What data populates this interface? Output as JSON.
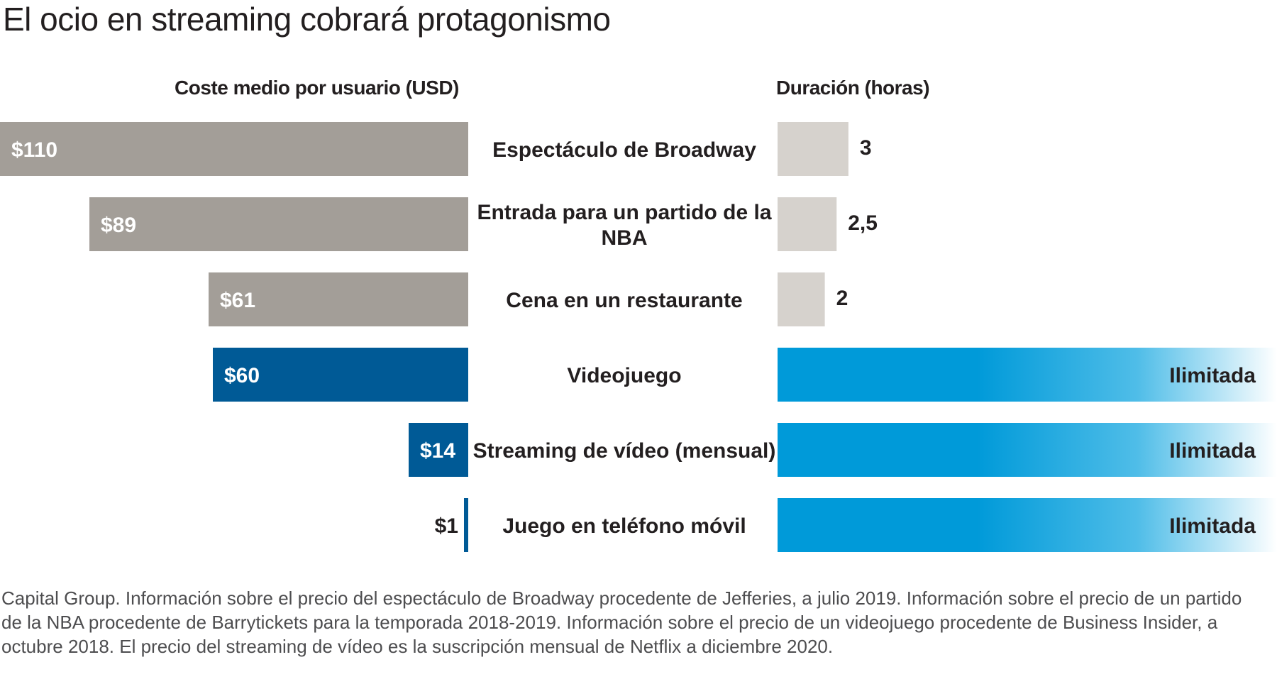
{
  "title": "El ocio en streaming cobrará protagonismo",
  "columns": {
    "cost_header": "Coste medio por usuario (USD)",
    "duration_header": "Duración (horas)"
  },
  "colors": {
    "gray_bar": "#a39e98",
    "light_gray_bar": "#d6d2cd",
    "dark_blue_bar": "#005a96",
    "bright_blue": "#009ad9",
    "text": "#231f20",
    "white_text": "#ffffff"
  },
  "chart_data": {
    "type": "bar",
    "categories": [
      "Espectáculo de Broadway",
      "Entrada para un partido de la NBA",
      "Cena en un restaurante",
      "Videojuego",
      "Streaming de vídeo (mensual)",
      "Juego en teléfono móvil"
    ],
    "category_lines": [
      [
        "Espectáculo de Broadway"
      ],
      [
        "Entrada para un partido de la",
        "NBA"
      ],
      [
        "Cena en un restaurante"
      ],
      [
        "Videojuego"
      ],
      [
        "Streaming de vídeo (mensual)"
      ],
      [
        "Juego en teléfono móvil"
      ]
    ],
    "series": [
      {
        "name": "Coste medio por usuario (USD)",
        "values": [
          110,
          89,
          61,
          60,
          14,
          1
        ],
        "labels": [
          "$110",
          "$89",
          "$61",
          "$60",
          "$14",
          "$1"
        ],
        "highlight": [
          false,
          false,
          false,
          true,
          true,
          true
        ]
      },
      {
        "name": "Duración (horas)",
        "values": [
          3,
          2.5,
          2,
          null,
          null,
          null
        ],
        "labels": [
          "3",
          "2,5",
          "2",
          "Ilimitada",
          "Ilimitada",
          "Ilimitada"
        ],
        "unlimited": [
          false,
          false,
          false,
          true,
          true,
          true
        ]
      }
    ]
  },
  "footnote": "Capital Group. Información sobre el precio del espectáculo de Broadway procedente de Jefferies, a julio 2019. Información sobre el precio de un partido de la NBA procedente de Barrytickets para la temporada 2018-2019. Información sobre el precio de un videojuego procedente de Business Insider, a octubre 2018. El precio del streaming de vídeo es la suscripción mensual de Netflix a diciembre 2020."
}
